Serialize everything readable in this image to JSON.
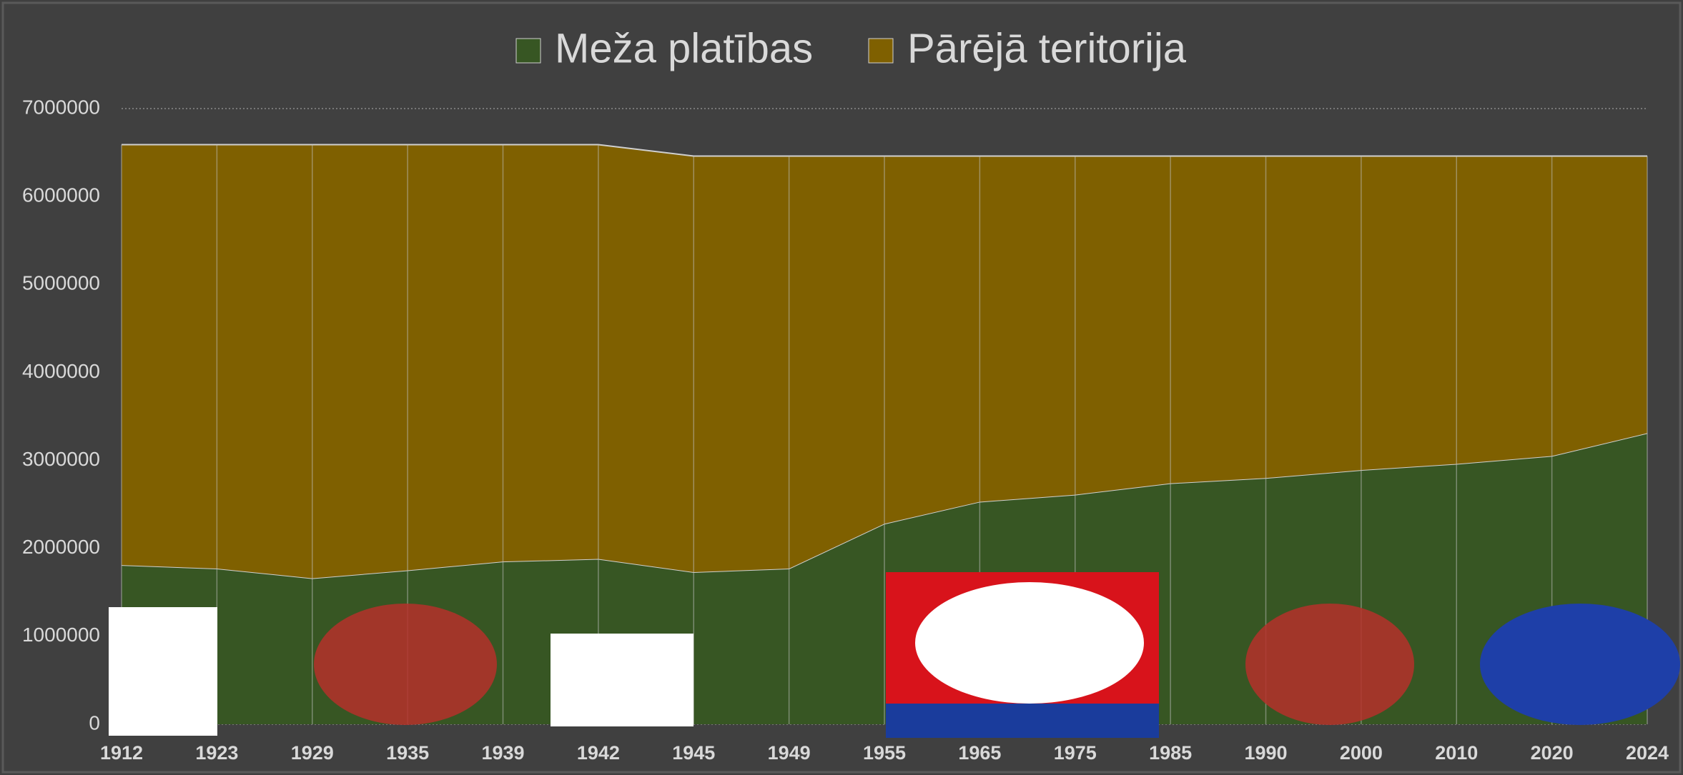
{
  "chart_data": {
    "type": "stacked_area",
    "categories": [
      "1912",
      "1923",
      "1929",
      "1935",
      "1939",
      "1942",
      "1945",
      "1949",
      "1955",
      "1965",
      "1975",
      "1985",
      "1990",
      "2000",
      "2010",
      "2020",
      "2024"
    ],
    "series": [
      {
        "name": "Meža platības",
        "color": "#375623",
        "values": [
          1810000,
          1770000,
          1660000,
          1750000,
          1850000,
          1880000,
          1730000,
          1770000,
          2280000,
          2530000,
          2610000,
          2740000,
          2800000,
          2890000,
          2960000,
          3050000,
          3310000
        ]
      },
      {
        "name": "Pārējā teritorija",
        "color": "#7f6000",
        "values": [
          4780000,
          4820000,
          4930000,
          4840000,
          4740000,
          4710000,
          4730000,
          4690000,
          4180000,
          3930000,
          3850000,
          3720000,
          3660000,
          3570000,
          3500000,
          3410000,
          3150000
        ]
      }
    ],
    "ylim": [
      0,
      7000000
    ],
    "yticks": [
      0,
      1000000,
      2000000,
      3000000,
      4000000,
      5000000,
      6000000,
      7000000
    ],
    "grid": true,
    "legend": "top"
  }
}
